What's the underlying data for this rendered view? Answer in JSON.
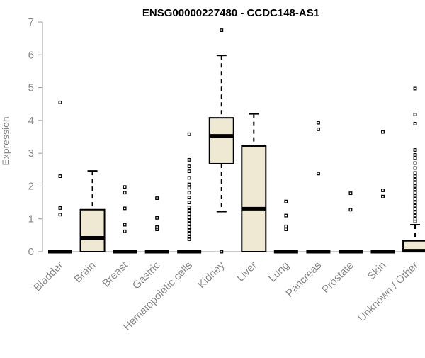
{
  "chart_data": {
    "type": "boxplot",
    "title": "ENSG00000227480 - CCDC148-AS1",
    "ylabel": "Expression",
    "xlabel": "",
    "ylim": [
      0,
      7
    ],
    "yticks": [
      0,
      1,
      2,
      3,
      4,
      5,
      6,
      7
    ],
    "grid": false,
    "legend": "none",
    "colors": {
      "box_fill": "#efe8d2",
      "box_stroke": "#000000",
      "axis": "#999999",
      "tick_label": "#888888",
      "title": "#000000"
    },
    "categories": [
      "Bladder",
      "Brain",
      "Breast",
      "Gastric",
      "Hematopoietic cells",
      "Kidney",
      "Liver",
      "Lung",
      "Pancreas",
      "Prostate",
      "Skin",
      "Unknown / Other"
    ],
    "boxes": [
      {
        "category": "Bladder",
        "q1": 0,
        "median": 0,
        "q3": 0,
        "whisker_low": 0,
        "whisker_high": 0,
        "outliers": [
          1.13,
          1.33,
          2.3,
          4.55
        ]
      },
      {
        "category": "Brain",
        "q1": 0,
        "median": 0.42,
        "q3": 1.28,
        "whisker_low": 0,
        "whisker_high": 2.46,
        "outliers": []
      },
      {
        "category": "Breast",
        "q1": 0,
        "median": 0,
        "q3": 0,
        "whisker_low": 0,
        "whisker_high": 0,
        "outliers": [
          0.62,
          0.82,
          1.32,
          1.8,
          1.97
        ]
      },
      {
        "category": "Gastric",
        "q1": 0,
        "median": 0,
        "q3": 0,
        "whisker_low": 0,
        "whisker_high": 0,
        "outliers": [
          0.68,
          0.75,
          1.03,
          1.63
        ]
      },
      {
        "category": "Hematopoietic cells",
        "q1": 0,
        "median": 0,
        "q3": 0,
        "whisker_low": 0,
        "whisker_high": 0,
        "outliers": [
          0.38,
          0.45,
          0.55,
          0.65,
          0.75,
          0.85,
          0.95,
          1.05,
          1.15,
          1.25,
          1.35,
          1.5,
          1.65,
          1.8,
          1.95,
          2.05,
          2.25,
          2.45,
          2.6,
          2.8,
          3.58
        ]
      },
      {
        "category": "Kidney",
        "q1": 2.68,
        "median": 3.53,
        "q3": 4.08,
        "whisker_low": 1.22,
        "whisker_high": 5.98,
        "outliers": [
          0,
          6.75
        ]
      },
      {
        "category": "Liver",
        "q1": 0,
        "median": 1.31,
        "q3": 3.22,
        "whisker_low": 0,
        "whisker_high": 4.2,
        "outliers": []
      },
      {
        "category": "Lung",
        "q1": 0,
        "median": 0,
        "q3": 0,
        "whisker_low": 0,
        "whisker_high": 0,
        "outliers": [
          0.68,
          0.77,
          1.1,
          1.53
        ]
      },
      {
        "category": "Pancreas",
        "q1": 0,
        "median": 0,
        "q3": 0,
        "whisker_low": 0,
        "whisker_high": 0,
        "outliers": [
          2.38,
          3.73,
          3.93
        ]
      },
      {
        "category": "Prostate",
        "q1": 0,
        "median": 0,
        "q3": 0,
        "whisker_low": 0,
        "whisker_high": 0,
        "outliers": [
          1.28,
          1.78
        ]
      },
      {
        "category": "Skin",
        "q1": 0,
        "median": 0,
        "q3": 0,
        "whisker_low": 0,
        "whisker_high": 0,
        "outliers": [
          1.68,
          1.87,
          3.65
        ]
      },
      {
        "category": "Unknown / Other",
        "q1": 0,
        "median": 0.03,
        "q3": 0.33,
        "whisker_low": 0,
        "whisker_high": 0.82,
        "outliers": [
          0.92,
          1.0,
          1.1,
          1.2,
          1.3,
          1.4,
          1.5,
          1.6,
          1.7,
          1.8,
          1.9,
          2.0,
          2.1,
          2.2,
          2.3,
          2.4,
          2.55,
          2.7,
          2.85,
          2.95,
          3.1,
          3.9,
          4.18,
          4.97
        ]
      }
    ]
  }
}
